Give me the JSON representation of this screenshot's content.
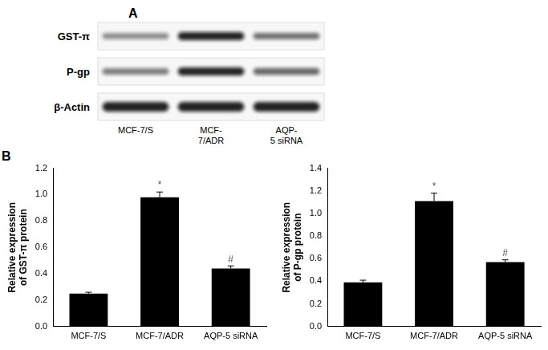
{
  "panel_a": {
    "label": "A",
    "rows": [
      "GST-π",
      "P-gp",
      "β-Actin"
    ],
    "lanes": [
      [
        "MCF-7/S"
      ],
      [
        "MCF-",
        "7/ADR"
      ],
      [
        "AQP-",
        "5 siRNA"
      ]
    ]
  },
  "panel_b": {
    "label": "B"
  },
  "chart_data": [
    {
      "type": "bar",
      "categories": [
        "MCF-7/S",
        "MCF-7/ADR",
        "AQP-5 siRNA"
      ],
      "values": [
        0.25,
        0.98,
        0.44
      ],
      "errors": [
        0.01,
        0.04,
        0.02
      ],
      "annotations": [
        null,
        "*",
        "#"
      ],
      "color": "#000000",
      "y_label": [
        "Relative expression",
        "of GST-π protein"
      ],
      "ylim": [
        0,
        1.2
      ],
      "yticks": [
        {
          "value": 0,
          "label": "0.0"
        },
        0.2,
        0.4,
        0.6,
        0.8,
        {
          "value": 1,
          "label": "1.0"
        },
        1.2
      ],
      "grid": false
    },
    {
      "type": "bar",
      "categories": [
        "MCF-7/S",
        "MCF-7/ADR",
        "AQP-5 siRNA"
      ],
      "values": [
        0.39,
        1.11,
        0.57
      ],
      "errors": [
        0.02,
        0.07,
        0.02
      ],
      "annotations": [
        null,
        "*",
        "#"
      ],
      "color": "#000000",
      "y_label": [
        "Relative expression",
        "of P-gp protein"
      ],
      "ylim": [
        0,
        1.4
      ],
      "yticks": [
        {
          "value": 0,
          "label": "0.0"
        },
        0.2,
        0.4,
        0.6,
        0.8,
        {
          "value": 1,
          "label": "1.0"
        },
        1.2,
        1.4
      ],
      "grid": false
    }
  ]
}
